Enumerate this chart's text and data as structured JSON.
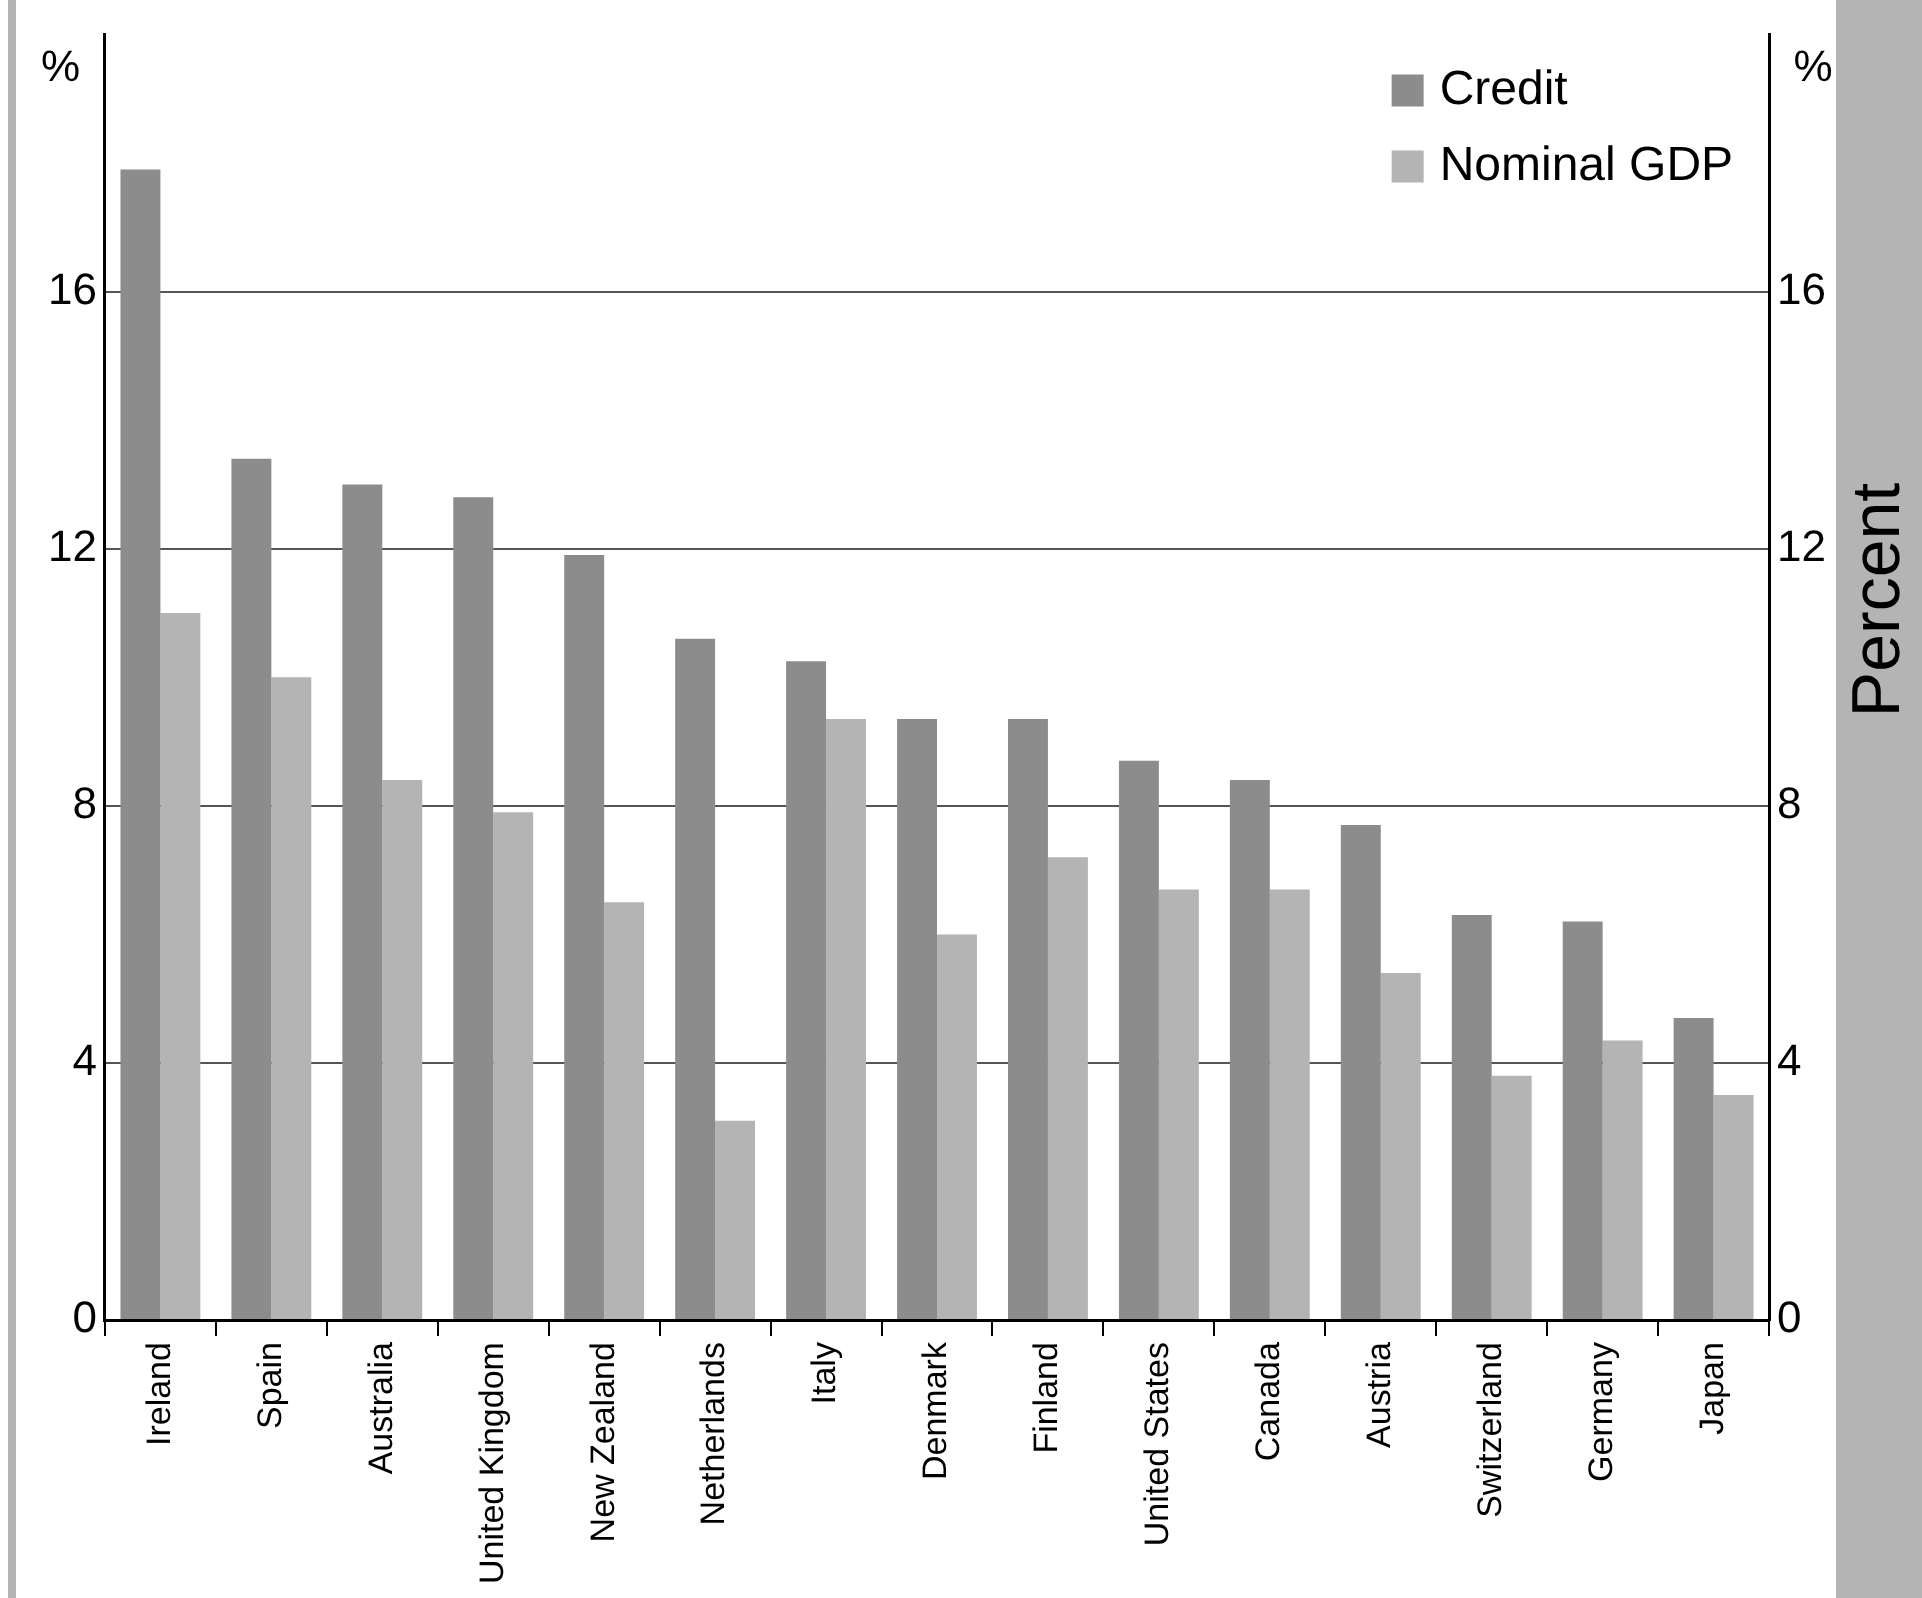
{
  "chart_data": {
    "type": "bar",
    "ylabel": "%",
    "y2label": "%",
    "annotations": [
      "Percent"
    ],
    "categories": [
      "Ireland",
      "Spain",
      "Australia",
      "United Kingdom",
      "New Zealand",
      "Netherlands",
      "Italy",
      "Denmark",
      "Finland",
      "United States",
      "Canada",
      "Austria",
      "Switzerland",
      "Germany",
      "Japan"
    ],
    "series": [
      {
        "name": "Credit",
        "color": "#8c8c8c",
        "values": [
          17.9,
          13.4,
          13.0,
          12.8,
          11.9,
          10.6,
          10.25,
          9.35,
          9.35,
          8.7,
          8.4,
          7.7,
          6.3,
          6.2,
          4.7
        ]
      },
      {
        "name": "Nominal GDP",
        "color": "#b4b4b4",
        "values": [
          11.0,
          10.0,
          8.4,
          7.9,
          6.5,
          3.1,
          9.35,
          6.0,
          7.2,
          6.7,
          6.7,
          5.4,
          3.8,
          4.35,
          3.5
        ]
      }
    ],
    "ylim": [
      0,
      20
    ],
    "yticks": [
      0,
      4,
      8,
      12,
      16
    ],
    "y2lim": [
      0,
      20
    ],
    "y2ticks": [
      0,
      4,
      8,
      12,
      16
    ],
    "grid": "y",
    "legend": "top right"
  }
}
